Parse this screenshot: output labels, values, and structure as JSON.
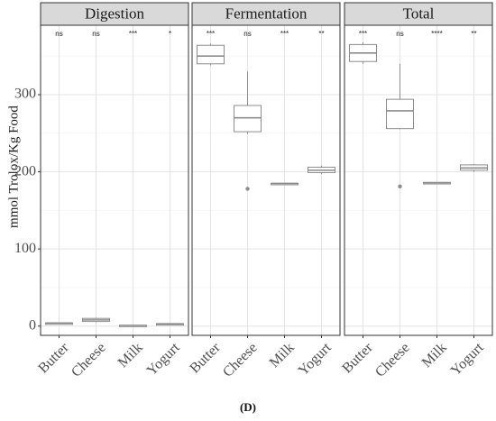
{
  "caption": "(D)",
  "chart_data": {
    "type": "boxplot",
    "ylabel": "mmol Trolox/Kg Food",
    "xlabel": "",
    "ylim": [
      -12,
      390
    ],
    "yticks": [
      0,
      100,
      200,
      300
    ],
    "grid": true,
    "categories": [
      "Butter",
      "Cheese",
      "Milk",
      "Yogurt"
    ],
    "panels": [
      {
        "title": "Digestion",
        "significance": [
          "ns",
          "ns",
          "***",
          "*"
        ],
        "boxes": [
          {
            "category": "Butter",
            "min": 3,
            "q1": 3,
            "median": 4,
            "q3": 4,
            "max": 4,
            "outliers": []
          },
          {
            "category": "Cheese",
            "min": 5,
            "q1": 6,
            "median": 8,
            "q3": 10,
            "max": 11,
            "outliers": []
          },
          {
            "category": "Milk",
            "min": 1,
            "q1": 1,
            "median": 1,
            "q3": 1,
            "max": 1,
            "outliers": []
          },
          {
            "category": "Yogurt",
            "min": 2,
            "q1": 2,
            "median": 3,
            "q3": 3,
            "max": 3,
            "outliers": []
          }
        ]
      },
      {
        "title": "Fermentation",
        "significance": [
          "***",
          "ns",
          "***",
          "**"
        ],
        "boxes": [
          {
            "category": "Butter",
            "min": 338,
            "q1": 340,
            "median": 350,
            "q3": 364,
            "max": 366,
            "outliers": []
          },
          {
            "category": "Cheese",
            "min": 249,
            "q1": 252,
            "median": 270,
            "q3": 286,
            "max": 330,
            "outliers": [
              178
            ]
          },
          {
            "category": "Milk",
            "min": 184,
            "q1": 184,
            "median": 185,
            "q3": 185,
            "max": 185,
            "outliers": []
          },
          {
            "category": "Yogurt",
            "min": 197,
            "q1": 199,
            "median": 202,
            "q3": 206,
            "max": 208,
            "outliers": []
          }
        ]
      },
      {
        "title": "Total",
        "significance": [
          "***",
          "ns",
          "****",
          "**"
        ],
        "boxes": [
          {
            "category": "Butter",
            "min": 340,
            "q1": 343,
            "median": 354,
            "q3": 365,
            "max": 368,
            "outliers": []
          },
          {
            "category": "Cheese",
            "min": 255,
            "q1": 256,
            "median": 279,
            "q3": 294,
            "max": 340,
            "outliers": [
              181
            ]
          },
          {
            "category": "Milk",
            "min": 185,
            "q1": 185,
            "median": 186,
            "q3": 186,
            "max": 186,
            "outliers": []
          },
          {
            "category": "Yogurt",
            "min": 200,
            "q1": 202,
            "median": 205,
            "q3": 209,
            "max": 210,
            "outliers": []
          }
        ]
      }
    ]
  }
}
